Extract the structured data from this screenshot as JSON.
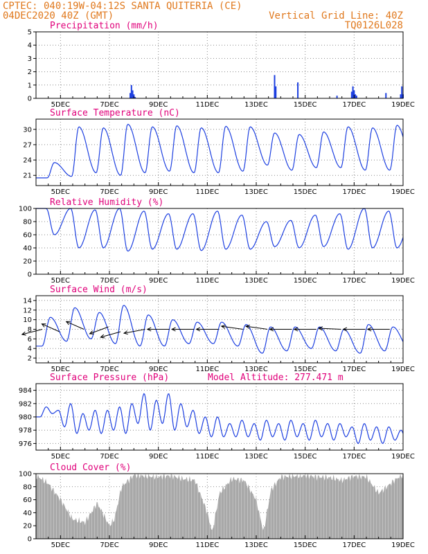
{
  "header": {
    "line1": "CPTEC:  040:19W-04:12S  SANTA QUITERIA (CE)",
    "line2": "04DEC2020 40Z (GMT)",
    "grid_note": "Vertical Grid Line: 40Z",
    "code": "TQ0126L028"
  },
  "colors": {
    "header": "#e0781c",
    "title": "#e0007a",
    "series": "#1c3fe0",
    "cloud": "#a8a8a8"
  },
  "x_axis": {
    "start_day": 4,
    "end_day": 19,
    "tick_days": [
      5,
      7,
      9,
      11,
      13,
      15,
      17,
      19
    ],
    "tick_labels": [
      "5DEC",
      "7DEC",
      "9DEC",
      "11DEC",
      "13DEC",
      "15DEC",
      "17DEC",
      "19DEC"
    ]
  },
  "chart_data": [
    {
      "name": "precipitation",
      "type": "bar",
      "title": "Precipitation (mm/h)",
      "ylim": [
        0,
        5
      ],
      "yticks": [
        0,
        1,
        2,
        3,
        4,
        5
      ],
      "x": [
        7.85,
        7.9,
        7.95,
        8.0,
        8.05,
        13.75,
        13.8,
        14.7,
        16.3,
        16.9,
        16.95,
        17.0,
        17.05,
        17.1,
        18.3,
        18.9,
        18.95,
        19.0
      ],
      "values": [
        0.4,
        1.0,
        0.6,
        0.3,
        0.1,
        1.75,
        0.9,
        1.2,
        0.2,
        0.5,
        0.9,
        0.6,
        0.3,
        0.2,
        0.4,
        0.3,
        0.9,
        0.3
      ]
    },
    {
      "name": "surface-temperature",
      "type": "line",
      "title": "Surface Temperature (nC)",
      "ylim": [
        19,
        32
      ],
      "yticks": [
        21,
        24,
        27,
        30
      ],
      "min_hour": 11,
      "max_hour": 18,
      "daily_min": [
        20.5,
        20.8,
        21.5,
        21.0,
        21.5,
        21.8,
        21.5,
        21.5,
        21.8,
        23.0,
        22.0,
        22.5,
        22.5,
        22.0,
        22.0,
        22.5
      ],
      "daily_max": [
        23.5,
        30.5,
        30.3,
        31.0,
        30.5,
        30.7,
        30.3,
        30.6,
        30.5,
        29.3,
        29.0,
        29.5,
        30.5,
        30.3,
        30.8,
        29.8
      ]
    },
    {
      "name": "relative-humidity",
      "type": "line",
      "title": "Relative Humidity (%)",
      "ylim": [
        0,
        100
      ],
      "yticks": [
        0,
        20,
        40,
        60,
        80,
        100
      ],
      "max_hour": 10,
      "min_hour": 18,
      "daily_max": [
        100,
        100,
        98,
        100,
        96,
        92,
        92,
        96,
        90,
        80,
        82,
        90,
        92,
        100,
        96,
        92
      ],
      "daily_min": [
        60,
        40,
        40,
        35,
        38,
        38,
        36,
        38,
        38,
        42,
        40,
        42,
        38,
        40,
        40,
        48
      ]
    },
    {
      "name": "surface-wind",
      "type": "line",
      "title": "Surface Wind (m/s)",
      "ylim": [
        1,
        15
      ],
      "yticks": [
        2,
        4,
        6,
        8,
        10,
        12,
        14
      ],
      "daily_low": [
        4.5,
        5.5,
        6.0,
        5.0,
        4.5,
        4.5,
        5.0,
        5.0,
        4.5,
        3.0,
        3.5,
        4.0,
        3.5,
        3.0,
        3.5,
        4.0
      ],
      "daily_high": [
        10.5,
        12.5,
        11.5,
        13.0,
        11.0,
        10.0,
        9.5,
        9.5,
        9.0,
        8.5,
        8.5,
        8.5,
        8.0,
        9.0,
        8.5,
        8.0
      ],
      "vector_days": [
        4.2,
        4.9,
        5.9,
        6.9,
        7.4,
        8.4,
        9.4,
        10.4,
        11.4,
        12.4,
        13.4,
        14.4,
        15.4,
        16.4,
        17.4,
        18.4
      ],
      "vector_y": [
        8.0,
        7.5,
        8.0,
        8.5,
        7.5,
        8.0,
        8.0,
        8.0,
        8.0,
        8.0,
        8.0,
        8.0,
        8.0,
        8.0,
        8.0,
        8.0
      ],
      "vector_u": [
        -1.3,
        -1.0,
        -1.0,
        -1.2,
        -1.2,
        -1.2,
        -1.2,
        -1.2,
        -1.2,
        -1.2,
        -1.2,
        -1.2,
        -1.2,
        -1.2,
        -1.2,
        -1.2
      ],
      "vector_v": [
        -0.6,
        0.8,
        0.8,
        -0.8,
        -0.6,
        -0.4,
        0.0,
        0.0,
        0.0,
        0.3,
        0.3,
        0.0,
        0.0,
        0.1,
        0.0,
        0.0
      ]
    },
    {
      "name": "surface-pressure",
      "type": "line",
      "title": "Surface Pressure (hPa)",
      "annotation": "Model Altitude: 277.471 m",
      "ylim": [
        975,
        985
      ],
      "yticks": [
        976,
        978,
        980,
        982,
        984
      ],
      "peak_hours": [
        10,
        22
      ],
      "trough_hours": [
        4,
        16
      ],
      "daily_peak1": [
        981.5,
        982.0,
        981.0,
        981.5,
        983.5,
        983.5,
        981.0,
        980.0,
        979.5,
        979.5,
        979.5,
        979.5,
        979.0,
        979.0,
        978.5,
        978.5
      ],
      "daily_peak2": [
        981.0,
        980.5,
        981.0,
        982.0,
        982.5,
        982.0,
        980.0,
        979.0,
        979.0,
        979.0,
        979.0,
        979.0,
        978.5,
        978.5,
        978.0,
        978.0
      ],
      "daily_trough1": [
        980.0,
        978.5,
        978.0,
        978.0,
        979.0,
        979.0,
        978.5,
        977.0,
        977.0,
        976.5,
        976.5,
        976.5,
        976.5,
        976.0,
        976.0,
        976.0
      ],
      "daily_trough2": [
        980.5,
        977.5,
        977.5,
        977.5,
        978.0,
        978.0,
        977.5,
        977.0,
        977.0,
        977.0,
        977.0,
        977.0,
        977.0,
        976.5,
        976.5,
        976.5
      ]
    },
    {
      "name": "cloud-cover",
      "type": "bar",
      "title": "Cloud Cover (%)",
      "ylim": [
        0,
        100
      ],
      "yticks": [
        0,
        20,
        40,
        60,
        80,
        100
      ],
      "x": [
        4.1,
        4.5,
        5.0,
        5.5,
        6.0,
        6.5,
        7.0,
        7.2,
        7.5,
        8.0,
        8.5,
        9.0,
        9.5,
        10.0,
        10.5,
        11.0,
        11.2,
        11.5,
        12.0,
        12.5,
        13.0,
        13.3,
        13.6,
        14.0,
        14.5,
        15.0,
        15.5,
        16.0,
        16.5,
        17.0,
        17.5,
        18.0,
        18.5,
        18.9
      ],
      "values": [
        95,
        85,
        60,
        30,
        25,
        55,
        20,
        30,
        80,
        98,
        96,
        95,
        97,
        92,
        90,
        40,
        10,
        70,
        92,
        90,
        60,
        10,
        75,
        95,
        96,
        97,
        95,
        94,
        90,
        96,
        95,
        70,
        85,
        97
      ]
    }
  ]
}
